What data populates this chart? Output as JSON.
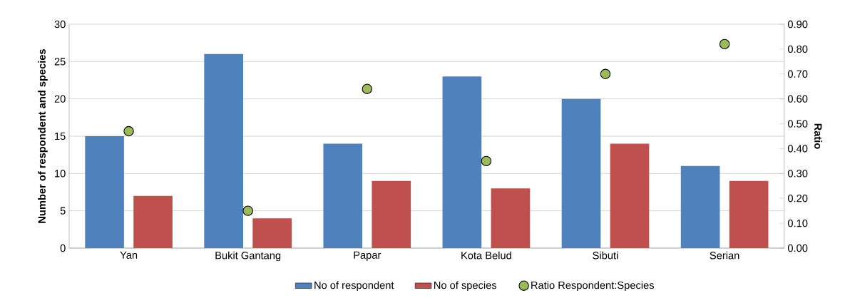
{
  "chart_data": {
    "type": "bar",
    "ylabel": "Number of respondent and species",
    "y2label": "Ratio",
    "categories": [
      "Yan",
      "Bukit Gantang",
      "Papar",
      "Kota Belud",
      "Sibuti",
      "Serian"
    ],
    "series": [
      {
        "name": "No of respondent",
        "color": "#4f81bd",
        "values": [
          15,
          26,
          14,
          23,
          20,
          11
        ]
      },
      {
        "name": "No of species",
        "color": "#c0504d",
        "values": [
          7,
          4,
          9,
          8,
          14,
          9
        ]
      },
      {
        "name": "Ratio Respondent:Species",
        "type": "scatter",
        "axis": "y2",
        "color": "#9bbb59",
        "values": [
          0.47,
          0.15,
          0.64,
          0.35,
          0.7,
          0.82
        ]
      }
    ],
    "ylim": [
      0,
      30
    ],
    "yticks": [
      0,
      5,
      10,
      15,
      20,
      25,
      30
    ],
    "y2lim": [
      0,
      0.9
    ],
    "y2ticks": [
      {
        "value": 0,
        "label": "0.00"
      },
      {
        "value": 0.1,
        "label": "0.10"
      },
      {
        "value": 0.2,
        "label": "0.20"
      },
      {
        "value": 0.3,
        "label": "0.30"
      },
      {
        "value": 0.4,
        "label": "0.40"
      },
      {
        "value": 0.5,
        "label": "0.50"
      },
      {
        "value": 0.6,
        "label": "0.60"
      },
      {
        "value": 0.7,
        "label": "0.70"
      },
      {
        "value": 0.8,
        "label": "0.80"
      },
      {
        "value": 0.9,
        "label": "0.90"
      }
    ],
    "grid": "y",
    "legend": "bottom"
  }
}
